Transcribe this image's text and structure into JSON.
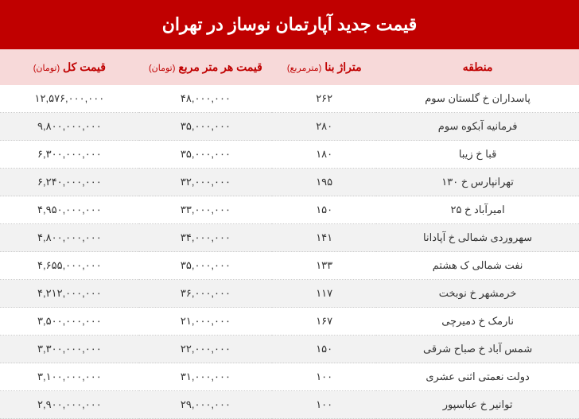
{
  "title": "قیمت جدید آپارتمان نوساز در تهران",
  "colors": {
    "header_bg": "#c00000",
    "header_text": "#ffffff",
    "thead_bg": "#f7d9d9",
    "thead_text": "#c00000",
    "row_odd_bg": "#ffffff",
    "row_even_bg": "#f2f2f2",
    "cell_text": "#333333",
    "border": "#cccccc"
  },
  "columns": [
    {
      "label": "منطقه",
      "unit": ""
    },
    {
      "label": "متراژ بنا",
      "unit": "(مترمربع)"
    },
    {
      "label": "قیمت هر متر مربع",
      "unit": "(تومان)"
    },
    {
      "label": "قیمت کل",
      "unit": "(تومان)"
    }
  ],
  "rows": [
    {
      "region": "پاسداران خ گلستان سوم",
      "area": "۲۶۲",
      "ppsm": "۴۸,۰۰۰,۰۰۰",
      "total": "۱۲,۵۷۶,۰۰۰,۰۰۰"
    },
    {
      "region": "فرمانیه آبکوه سوم",
      "area": "۲۸۰",
      "ppsm": "۳۵,۰۰۰,۰۰۰",
      "total": "۹,۸۰۰,۰۰۰,۰۰۰"
    },
    {
      "region": "قبا خ زیبا",
      "area": "۱۸۰",
      "ppsm": "۳۵,۰۰۰,۰۰۰",
      "total": "۶,۳۰۰,۰۰۰,۰۰۰"
    },
    {
      "region": "تهرانپارس خ ۱۳۰",
      "area": "۱۹۵",
      "ppsm": "۳۲,۰۰۰,۰۰۰",
      "total": "۶,۲۴۰,۰۰۰,۰۰۰"
    },
    {
      "region": "امیرآباد خ ۲۵",
      "area": "۱۵۰",
      "ppsm": "۳۳,۰۰۰,۰۰۰",
      "total": "۴,۹۵۰,۰۰۰,۰۰۰"
    },
    {
      "region": "سهروردی شمالی خ آپادانا",
      "area": "۱۴۱",
      "ppsm": "۳۴,۰۰۰,۰۰۰",
      "total": "۴,۸۰۰,۰۰۰,۰۰۰"
    },
    {
      "region": "نفت شمالی ک هشتم",
      "area": "۱۳۳",
      "ppsm": "۳۵,۰۰۰,۰۰۰",
      "total": "۴,۶۵۵,۰۰۰,۰۰۰"
    },
    {
      "region": "خرمشهر خ نوبخت",
      "area": "۱۱۷",
      "ppsm": "۳۶,۰۰۰,۰۰۰",
      "total": "۴,۲۱۲,۰۰۰,۰۰۰"
    },
    {
      "region": "نارمک خ دمیرچی",
      "area": "۱۶۷",
      "ppsm": "۲۱,۰۰۰,۰۰۰",
      "total": "۳,۵۰۰,۰۰۰,۰۰۰"
    },
    {
      "region": "شمس آباد خ صباح شرقی",
      "area": "۱۵۰",
      "ppsm": "۲۲,۰۰۰,۰۰۰",
      "total": "۳,۳۰۰,۰۰۰,۰۰۰"
    },
    {
      "region": "دولت نعمتی اثنی عشری",
      "area": "۱۰۰",
      "ppsm": "۳۱,۰۰۰,۰۰۰",
      "total": "۳,۱۰۰,۰۰۰,۰۰۰"
    },
    {
      "region": "توانیر خ عباسپور",
      "area": "۱۰۰",
      "ppsm": "۲۹,۰۰۰,۰۰۰",
      "total": "۲,۹۰۰,۰۰۰,۰۰۰"
    }
  ]
}
